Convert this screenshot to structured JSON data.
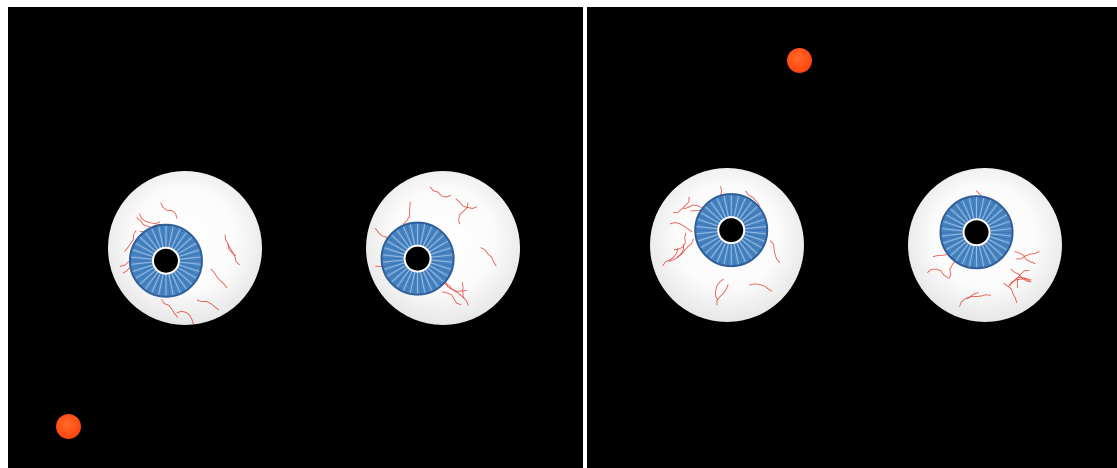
{
  "scene": {
    "panels": [
      {
        "name": "left",
        "eyes": [
          {
            "iris_offset": [
              -0.45,
              0.3
            ]
          },
          {
            "iris_offset": [
              -0.6,
              0.25
            ]
          }
        ]
      },
      {
        "name": "right",
        "eyes": [
          {
            "iris_offset": [
              0.1,
              -0.35
            ]
          },
          {
            "iris_offset": [
              -0.2,
              -0.3
            ]
          }
        ]
      }
    ]
  },
  "colors": {
    "background": "#000000",
    "divider": "#ffffff",
    "sclera": "#ffffff",
    "iris": "#4a86c4",
    "pupil": "#000000",
    "veins": "#e03a2a",
    "dot": "#ff4a12"
  }
}
